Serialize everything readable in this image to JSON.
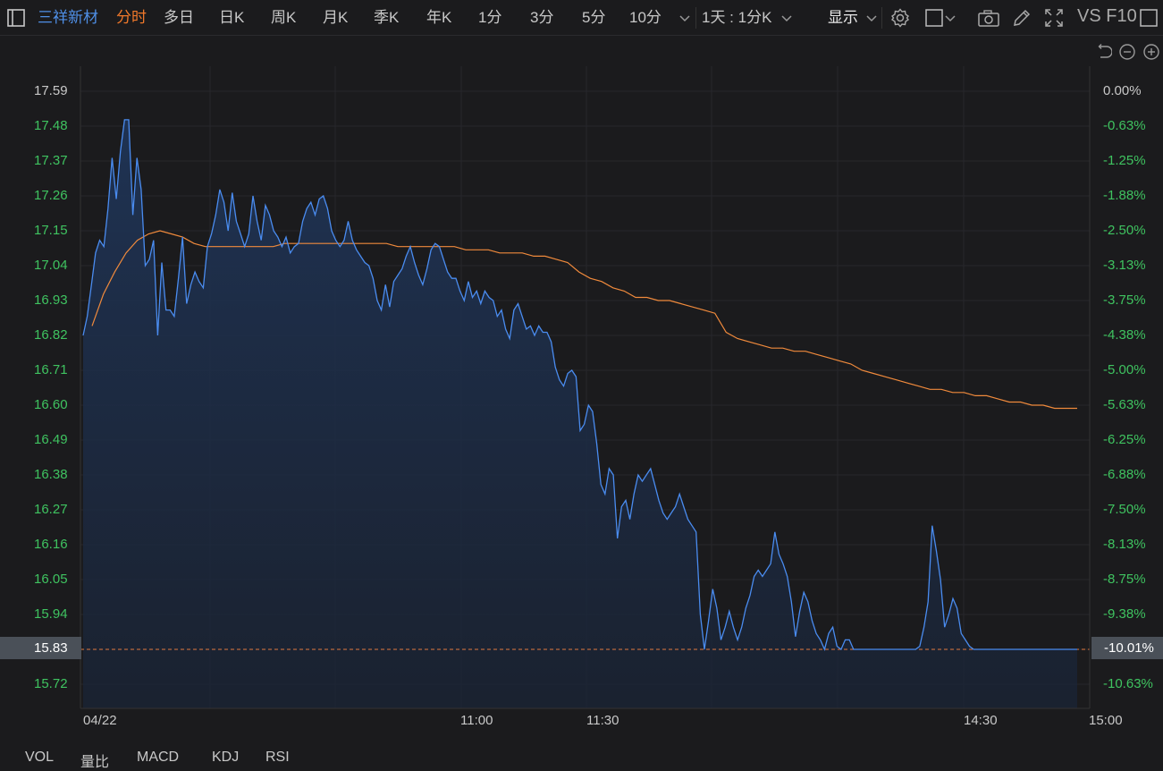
{
  "toolbar": {
    "stock_name": "三祥新材",
    "periods": [
      "分时",
      "多日",
      "日K",
      "周K",
      "月K",
      "季K",
      "年K",
      "1分",
      "3分",
      "5分",
      "10分"
    ],
    "active_period": "分时",
    "range_select": "1天 : 1分K",
    "display_label": "显示",
    "fio_label": "VS F10"
  },
  "indicators": [
    "VOL",
    "量比",
    "MACD",
    "KDJ",
    "RSI"
  ],
  "current_price": "15.83",
  "current_change": "-10.01%",
  "colors": {
    "background": "#1b1b1d",
    "price_line": "#4a8cf0",
    "avg_line": "#f08a3c",
    "axis_green": "#3fc360",
    "active_tab": "#f0782a"
  },
  "chart_data": {
    "type": "line",
    "title": "",
    "y_left_ticks": [
      "17.59",
      "17.48",
      "17.37",
      "17.26",
      "17.15",
      "17.04",
      "16.93",
      "16.82",
      "16.71",
      "16.60",
      "16.49",
      "16.38",
      "16.27",
      "16.16",
      "16.05",
      "15.94",
      "15.83",
      "15.72"
    ],
    "y_right_ticks": [
      "0.00%",
      "-0.63%",
      "-1.25%",
      "-1.88%",
      "-2.50%",
      "-3.13%",
      "-3.75%",
      "-4.38%",
      "-5.00%",
      "-5.63%",
      "-6.25%",
      "-6.88%",
      "-7.50%",
      "-8.13%",
      "-8.75%",
      "-9.38%",
      "-10.01%",
      "-10.63%"
    ],
    "x_ticks": [
      "04/22",
      "11:00",
      "11:30",
      "14:30",
      "15:00"
    ],
    "ylim": [
      15.72,
      17.59
    ],
    "limit_down": 15.83,
    "grid": true,
    "series": [
      {
        "type": "price",
        "values": [
          16.82,
          16.88,
          16.98,
          17.08,
          17.12,
          17.1,
          17.22,
          17.38,
          17.25,
          17.4,
          17.5,
          17.5,
          17.2,
          17.38,
          17.28,
          17.04,
          17.06,
          17.12,
          16.82,
          17.05,
          16.9,
          16.9,
          16.88,
          17.0,
          17.13,
          16.92,
          16.98,
          17.02,
          16.99,
          16.97,
          17.1,
          17.14,
          17.2,
          17.28,
          17.24,
          17.15,
          17.27,
          17.18,
          17.14,
          17.1,
          17.14,
          17.26,
          17.18,
          17.12,
          17.23,
          17.2,
          17.15,
          17.13,
          17.1,
          17.13,
          17.08,
          17.1,
          17.11,
          17.18,
          17.22,
          17.24,
          17.2,
          17.25,
          17.26,
          17.22,
          17.15,
          17.12,
          17.1,
          17.12,
          17.18,
          17.12,
          17.09,
          17.07,
          17.05,
          17.04,
          17.0,
          16.93,
          16.9,
          16.98,
          16.91,
          16.99,
          17.01,
          17.03,
          17.07,
          17.1,
          17.05,
          17.01,
          16.98,
          17.03,
          17.09,
          17.11,
          17.1,
          17.06,
          17.02,
          17.0,
          17.0,
          16.96,
          16.93,
          16.99,
          16.94,
          16.96,
          16.92,
          16.96,
          16.94,
          16.93,
          16.88,
          16.9,
          16.84,
          16.81,
          16.9,
          16.92,
          16.88,
          16.84,
          16.85,
          16.82,
          16.85,
          16.83,
          16.83,
          16.8,
          16.72,
          16.68,
          16.66,
          16.7,
          16.71,
          16.69,
          16.52,
          16.54,
          16.6,
          16.58,
          16.48,
          16.35,
          16.32,
          16.4,
          16.38,
          16.18,
          16.28,
          16.3,
          16.24,
          16.32,
          16.38,
          16.36,
          16.38,
          16.4,
          16.35,
          16.3,
          16.26,
          16.24,
          16.26,
          16.28,
          16.32,
          16.28,
          16.24,
          16.22,
          16.2,
          15.94,
          15.83,
          15.92,
          16.02,
          15.96,
          15.86,
          15.9,
          15.95,
          15.9,
          15.86,
          15.9,
          15.96,
          16.0,
          16.06,
          16.08,
          16.06,
          16.08,
          16.1,
          16.2,
          16.13,
          16.1,
          16.06,
          15.98,
          15.87,
          15.95,
          16.01,
          15.98,
          15.92,
          15.88,
          15.86,
          15.83,
          15.88,
          15.9,
          15.84,
          15.83,
          15.86,
          15.86,
          15.83,
          15.83,
          15.83,
          15.83,
          15.83,
          15.83,
          15.83,
          15.83,
          15.83,
          15.83,
          15.83,
          15.83,
          15.83,
          15.83,
          15.83,
          15.83,
          15.84,
          15.9,
          15.98,
          16.22,
          16.14,
          16.05,
          15.9,
          15.94,
          15.99,
          15.96,
          15.88,
          15.86,
          15.84,
          15.83,
          15.83,
          15.83,
          15.83,
          15.83,
          15.83,
          15.83,
          15.83,
          15.83,
          15.83,
          15.83,
          15.83,
          15.83,
          15.83,
          15.83,
          15.83,
          15.83,
          15.83,
          15.83,
          15.83,
          15.83,
          15.83,
          15.83,
          15.83,
          15.83,
          15.83
        ]
      },
      {
        "type": "average",
        "values": [
          16.85,
          16.95,
          17.02,
          17.08,
          17.12,
          17.14,
          17.15,
          17.14,
          17.13,
          17.11,
          17.1,
          17.1,
          17.1,
          17.1,
          17.1,
          17.1,
          17.1,
          17.11,
          17.11,
          17.11,
          17.11,
          17.11,
          17.11,
          17.11,
          17.11,
          17.11,
          17.11,
          17.1,
          17.1,
          17.1,
          17.1,
          17.1,
          17.1,
          17.09,
          17.09,
          17.09,
          17.08,
          17.08,
          17.08,
          17.07,
          17.07,
          17.06,
          17.05,
          17.02,
          17.0,
          16.99,
          16.97,
          16.96,
          16.94,
          16.94,
          16.93,
          16.93,
          16.92,
          16.91,
          16.9,
          16.89,
          16.83,
          16.81,
          16.8,
          16.79,
          16.78,
          16.78,
          16.77,
          16.77,
          16.76,
          16.75,
          16.74,
          16.73,
          16.71,
          16.7,
          16.69,
          16.68,
          16.67,
          16.66,
          16.65,
          16.65,
          16.64,
          16.64,
          16.63,
          16.63,
          16.62,
          16.61,
          16.61,
          16.6,
          16.6,
          16.59,
          16.59,
          16.59
        ]
      }
    ]
  }
}
